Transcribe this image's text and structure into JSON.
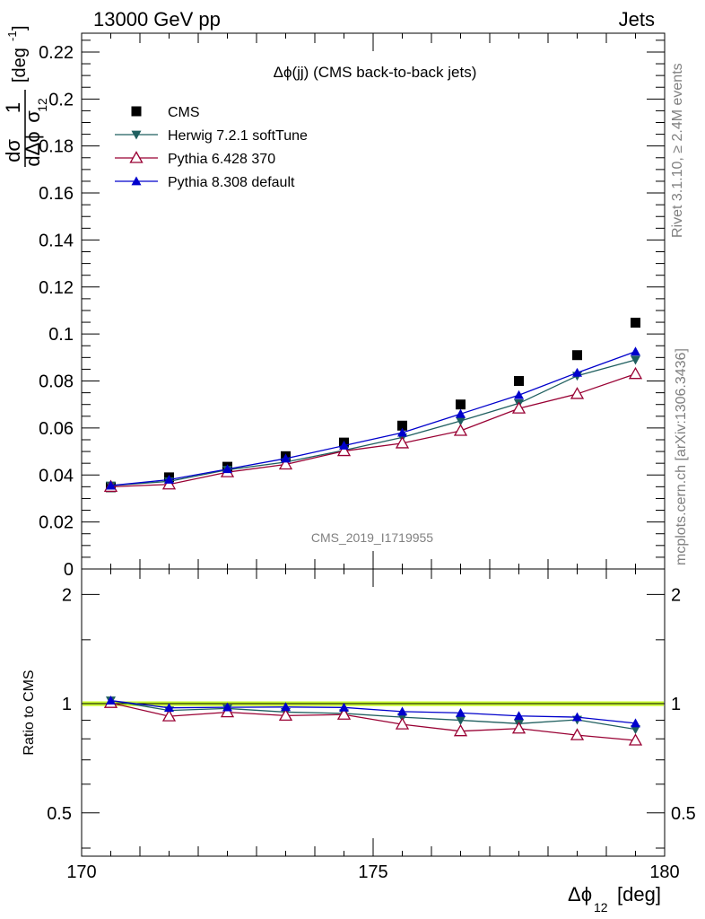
{
  "header": {
    "left": "13000 GeV pp",
    "right": "Jets"
  },
  "side_labels": {
    "rivet": "Rivet 3.1.10, ≥ 2.4M events",
    "mcplots": "mcplots.cern.ch [arXiv:1306.3436]"
  },
  "chart_data": [
    {
      "panel": "main",
      "type": "scatter",
      "title": "Δϕ(jj) (CMS back-to-back jets)",
      "watermark": "CMS_2019_I1719955",
      "ylabel": {
        "frac_num": "1",
        "frac_num2": "dσ",
        "frac_den": "σ",
        "frac_den2": "dΔϕ",
        "sub": "12",
        "unit": "[deg",
        "unit_sup": "-1",
        "unit_end": "]"
      },
      "xlim": [
        170,
        180
      ],
      "ylim": [
        0,
        0.228
      ],
      "x_ticks": [
        170,
        175,
        180
      ],
      "y_ticks": [
        "0",
        "0.02",
        "0.04",
        "0.06",
        "0.08",
        "0.1",
        "0.12",
        "0.14",
        "0.16",
        "0.18",
        "0.2",
        "0.22"
      ],
      "legend_position": "top-left",
      "x": [
        170.5,
        171.5,
        172.5,
        173.5,
        174.5,
        175.5,
        176.5,
        177.5,
        178.5,
        179.5
      ],
      "series": [
        {
          "name": "CMS",
          "color": "#000000",
          "marker": "square",
          "line": false,
          "values": [
            0.0348,
            0.039,
            0.0435,
            0.048,
            0.0538,
            0.061,
            0.07,
            0.08,
            0.091,
            0.1048
          ]
        },
        {
          "name": "Herwig 7.2.1 softTune",
          "color": "#1f5f5f",
          "marker": "triangle-down",
          "line": true,
          "values": [
            0.0355,
            0.0373,
            0.0422,
            0.0455,
            0.0505,
            0.056,
            0.063,
            0.0705,
            0.0822,
            0.089
          ]
        },
        {
          "name": "Pythia 6.428 370",
          "color": "#990033",
          "marker": "triangle-up-open",
          "line": true,
          "values": [
            0.035,
            0.036,
            0.0412,
            0.0445,
            0.0502,
            0.0535,
            0.0588,
            0.0683,
            0.0745,
            0.083
          ]
        },
        {
          "name": "Pythia 8.308 default",
          "color": "#0000cc",
          "marker": "triangle-up",
          "line": true,
          "values": [
            0.0355,
            0.038,
            0.0425,
            0.047,
            0.0525,
            0.058,
            0.066,
            0.074,
            0.0835,
            0.0925
          ]
        }
      ]
    },
    {
      "panel": "ratio",
      "type": "line",
      "ylabel": "Ratio to CMS",
      "xlabel": "Δϕ",
      "xlabel_sub": "12",
      "xlabel_unit": "[deg]",
      "xlim": [
        170,
        180
      ],
      "ylim": [
        0.38,
        2.35
      ],
      "y_scale": "log",
      "y_ticks": [
        "0.5",
        "1",
        "2"
      ],
      "x_ticks": [
        "170",
        "175",
        "180"
      ],
      "band": {
        "color": "#ccff33",
        "low": 0.985,
        "high": 1.015
      },
      "x": [
        170.5,
        171.5,
        172.5,
        173.5,
        174.5,
        175.5,
        176.5,
        177.5,
        178.5,
        179.5
      ],
      "series": [
        {
          "name": "Herwig 7.2.1 softTune",
          "color": "#1f5f5f",
          "marker": "triangle-down",
          "values": [
            1.02,
            0.958,
            0.97,
            0.948,
            0.94,
            0.918,
            0.9,
            0.881,
            0.903,
            0.85
          ]
        },
        {
          "name": "Pythia 6.428 370",
          "color": "#990033",
          "marker": "triangle-up-open",
          "values": [
            1.005,
            0.923,
            0.947,
            0.927,
            0.933,
            0.877,
            0.84,
            0.854,
            0.819,
            0.792
          ]
        },
        {
          "name": "Pythia 8.308 default",
          "color": "#0000cc",
          "marker": "triangle-up",
          "values": [
            1.02,
            0.974,
            0.977,
            0.979,
            0.976,
            0.951,
            0.943,
            0.925,
            0.918,
            0.883
          ]
        }
      ]
    }
  ]
}
